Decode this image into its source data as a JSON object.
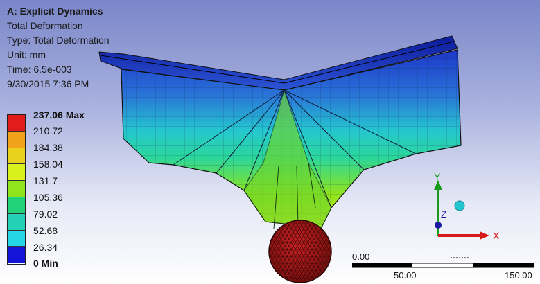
{
  "header": {
    "analysis_title": "A: Explicit Dynamics",
    "result_name": "Total Deformation",
    "type_label": "Type: Total Deformation",
    "unit_label": "Unit: mm",
    "time_label": "Time: 6.5e-003",
    "date_label": "9/30/2015 7:36 PM"
  },
  "legend": {
    "labels": [
      "237.06 Max",
      "210.72",
      "184.38",
      "158.04",
      "131.7",
      "105.36",
      "79.02",
      "52.68",
      "26.34",
      "0 Min"
    ],
    "colors": [
      "#e21b1b",
      "#f2a21a",
      "#e8d21b",
      "#d8f01c",
      "#8fe41c",
      "#22d27a",
      "#23d2b6",
      "#25d6e4",
      "#1b7ce6",
      "#1414d8"
    ]
  },
  "triad": {
    "x_label": "X",
    "y_label": "Y",
    "z_label": "Z"
  },
  "scale_bar": {
    "labels": [
      "0.00",
      "50.00",
      "150.00"
    ],
    "unit_hint": "(mm)"
  }
}
